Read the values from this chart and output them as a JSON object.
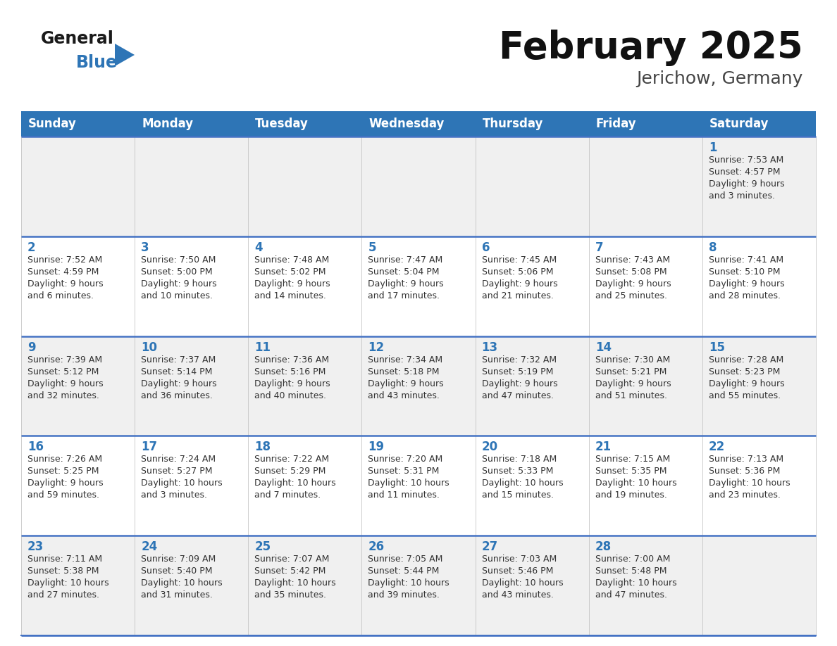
{
  "title": "February 2025",
  "subtitle": "Jerichow, Germany",
  "header_bg": "#2E75B6",
  "header_text_color": "#FFFFFF",
  "day_names": [
    "Sunday",
    "Monday",
    "Tuesday",
    "Wednesday",
    "Thursday",
    "Friday",
    "Saturday"
  ],
  "row_bg_even": "#F0F0F0",
  "row_bg_odd": "#FFFFFF",
  "divider_color": "#4472C4",
  "date_color": "#2E75B6",
  "info_color": "#333333",
  "logo_general_color": "#1A1A1A",
  "logo_blue_color": "#2E75B6",
  "title_color": "#111111",
  "subtitle_color": "#444444",
  "calendar": [
    [
      {
        "day": null,
        "info": ""
      },
      {
        "day": null,
        "info": ""
      },
      {
        "day": null,
        "info": ""
      },
      {
        "day": null,
        "info": ""
      },
      {
        "day": null,
        "info": ""
      },
      {
        "day": null,
        "info": ""
      },
      {
        "day": 1,
        "info": "Sunrise: 7:53 AM\nSunset: 4:57 PM\nDaylight: 9 hours\nand 3 minutes."
      }
    ],
    [
      {
        "day": 2,
        "info": "Sunrise: 7:52 AM\nSunset: 4:59 PM\nDaylight: 9 hours\nand 6 minutes."
      },
      {
        "day": 3,
        "info": "Sunrise: 7:50 AM\nSunset: 5:00 PM\nDaylight: 9 hours\nand 10 minutes."
      },
      {
        "day": 4,
        "info": "Sunrise: 7:48 AM\nSunset: 5:02 PM\nDaylight: 9 hours\nand 14 minutes."
      },
      {
        "day": 5,
        "info": "Sunrise: 7:47 AM\nSunset: 5:04 PM\nDaylight: 9 hours\nand 17 minutes."
      },
      {
        "day": 6,
        "info": "Sunrise: 7:45 AM\nSunset: 5:06 PM\nDaylight: 9 hours\nand 21 minutes."
      },
      {
        "day": 7,
        "info": "Sunrise: 7:43 AM\nSunset: 5:08 PM\nDaylight: 9 hours\nand 25 minutes."
      },
      {
        "day": 8,
        "info": "Sunrise: 7:41 AM\nSunset: 5:10 PM\nDaylight: 9 hours\nand 28 minutes."
      }
    ],
    [
      {
        "day": 9,
        "info": "Sunrise: 7:39 AM\nSunset: 5:12 PM\nDaylight: 9 hours\nand 32 minutes."
      },
      {
        "day": 10,
        "info": "Sunrise: 7:37 AM\nSunset: 5:14 PM\nDaylight: 9 hours\nand 36 minutes."
      },
      {
        "day": 11,
        "info": "Sunrise: 7:36 AM\nSunset: 5:16 PM\nDaylight: 9 hours\nand 40 minutes."
      },
      {
        "day": 12,
        "info": "Sunrise: 7:34 AM\nSunset: 5:18 PM\nDaylight: 9 hours\nand 43 minutes."
      },
      {
        "day": 13,
        "info": "Sunrise: 7:32 AM\nSunset: 5:19 PM\nDaylight: 9 hours\nand 47 minutes."
      },
      {
        "day": 14,
        "info": "Sunrise: 7:30 AM\nSunset: 5:21 PM\nDaylight: 9 hours\nand 51 minutes."
      },
      {
        "day": 15,
        "info": "Sunrise: 7:28 AM\nSunset: 5:23 PM\nDaylight: 9 hours\nand 55 minutes."
      }
    ],
    [
      {
        "day": 16,
        "info": "Sunrise: 7:26 AM\nSunset: 5:25 PM\nDaylight: 9 hours\nand 59 minutes."
      },
      {
        "day": 17,
        "info": "Sunrise: 7:24 AM\nSunset: 5:27 PM\nDaylight: 10 hours\nand 3 minutes."
      },
      {
        "day": 18,
        "info": "Sunrise: 7:22 AM\nSunset: 5:29 PM\nDaylight: 10 hours\nand 7 minutes."
      },
      {
        "day": 19,
        "info": "Sunrise: 7:20 AM\nSunset: 5:31 PM\nDaylight: 10 hours\nand 11 minutes."
      },
      {
        "day": 20,
        "info": "Sunrise: 7:18 AM\nSunset: 5:33 PM\nDaylight: 10 hours\nand 15 minutes."
      },
      {
        "day": 21,
        "info": "Sunrise: 7:15 AM\nSunset: 5:35 PM\nDaylight: 10 hours\nand 19 minutes."
      },
      {
        "day": 22,
        "info": "Sunrise: 7:13 AM\nSunset: 5:36 PM\nDaylight: 10 hours\nand 23 minutes."
      }
    ],
    [
      {
        "day": 23,
        "info": "Sunrise: 7:11 AM\nSunset: 5:38 PM\nDaylight: 10 hours\nand 27 minutes."
      },
      {
        "day": 24,
        "info": "Sunrise: 7:09 AM\nSunset: 5:40 PM\nDaylight: 10 hours\nand 31 minutes."
      },
      {
        "day": 25,
        "info": "Sunrise: 7:07 AM\nSunset: 5:42 PM\nDaylight: 10 hours\nand 35 minutes."
      },
      {
        "day": 26,
        "info": "Sunrise: 7:05 AM\nSunset: 5:44 PM\nDaylight: 10 hours\nand 39 minutes."
      },
      {
        "day": 27,
        "info": "Sunrise: 7:03 AM\nSunset: 5:46 PM\nDaylight: 10 hours\nand 43 minutes."
      },
      {
        "day": 28,
        "info": "Sunrise: 7:00 AM\nSunset: 5:48 PM\nDaylight: 10 hours\nand 47 minutes."
      },
      {
        "day": null,
        "info": ""
      }
    ]
  ]
}
